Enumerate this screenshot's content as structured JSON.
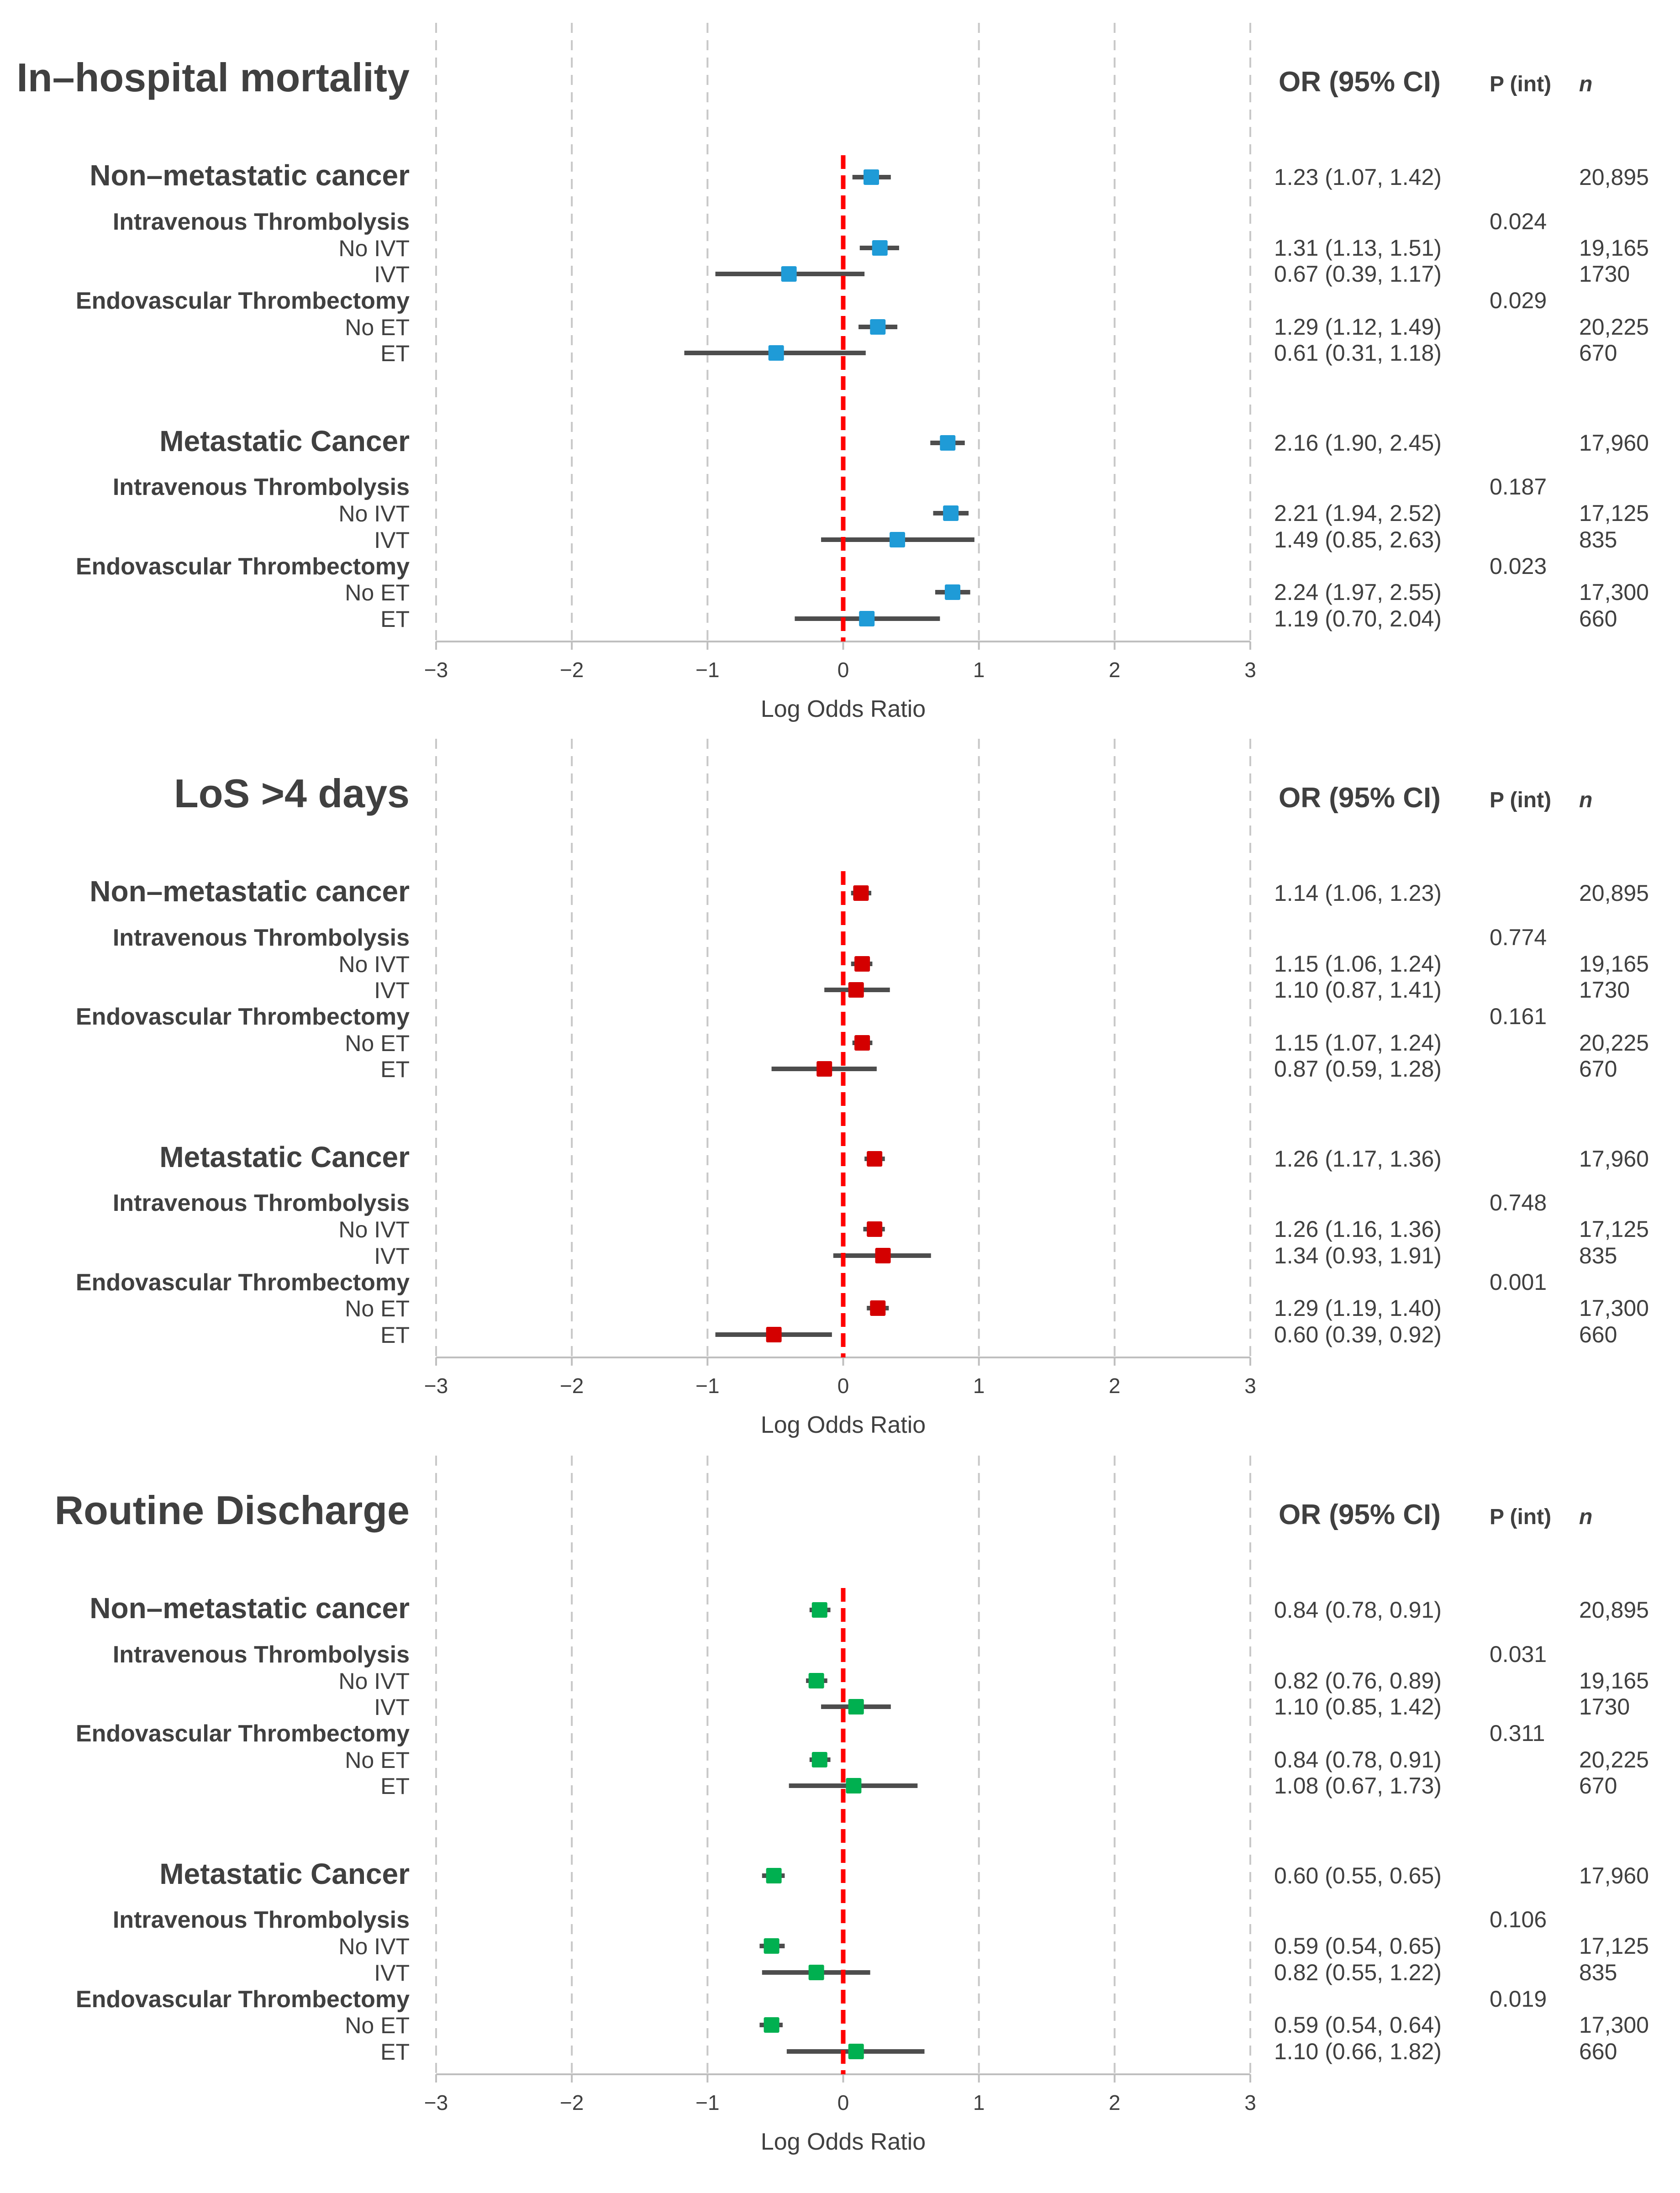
{
  "headers": {
    "or": "OR (95% CI)",
    "p": "P (int)",
    "n": "n"
  },
  "colors": {
    "mortality": "#1f9bd7",
    "los": "#d40000",
    "discharge": "#00b050",
    "reference_line": "#ff0000",
    "ci_line": "#4d4d4d"
  },
  "chart_data": [
    {
      "type": "forest",
      "title": "In–hospital mortality",
      "xlabel": "Log Odds Ratio",
      "xlim": [
        -3,
        3
      ],
      "xticks": [
        "−3",
        "−2",
        "−1",
        "0",
        "1",
        "2",
        "3"
      ],
      "reference_line": 0,
      "rows": [
        {
          "label": "Non–metastatic cancer",
          "kind": "group",
          "est": 0.207,
          "lo": 0.068,
          "hi": 0.351,
          "or": "1.23 (1.07, 1.42)",
          "p": "",
          "n": "20,895"
        },
        {
          "label": "Intravenous Thrombolysis",
          "kind": "subheader",
          "or": "",
          "p": "0.024",
          "n": ""
        },
        {
          "label": "No IVT",
          "kind": "row",
          "est": 0.27,
          "lo": 0.122,
          "hi": 0.412,
          "or": "1.31 (1.13, 1.51)",
          "p": "",
          "n": "19,165"
        },
        {
          "label": "IVT",
          "kind": "row",
          "est": -0.4,
          "lo": -0.942,
          "hi": 0.157,
          "or": "0.67 (0.39, 1.17)",
          "p": "",
          "n": "1730"
        },
        {
          "label": "Endovascular Thrombectomy",
          "kind": "subheader",
          "or": "",
          "p": "0.029",
          "n": ""
        },
        {
          "label": "No ET",
          "kind": "row",
          "est": 0.255,
          "lo": 0.113,
          "hi": 0.399,
          "or": "1.29 (1.12, 1.49)",
          "p": "",
          "n": "20,225"
        },
        {
          "label": "ET",
          "kind": "row",
          "est": -0.494,
          "lo": -1.171,
          "hi": 0.166,
          "or": "0.61 (0.31, 1.18)",
          "p": "",
          "n": "670"
        },
        {
          "kind": "spacer"
        },
        {
          "label": "Metastatic Cancer",
          "kind": "group",
          "est": 0.77,
          "lo": 0.642,
          "hi": 0.896,
          "or": "2.16 (1.90, 2.45)",
          "p": "",
          "n": "17,960"
        },
        {
          "label": "Intravenous Thrombolysis",
          "kind": "subheader",
          "or": "",
          "p": "0.187",
          "n": ""
        },
        {
          "label": "No IVT",
          "kind": "row",
          "est": 0.793,
          "lo": 0.663,
          "hi": 0.924,
          "or": "2.21 (1.94, 2.52)",
          "p": "",
          "n": "17,125"
        },
        {
          "label": "IVT",
          "kind": "row",
          "est": 0.399,
          "lo": -0.163,
          "hi": 0.967,
          "or": "1.49 (0.85, 2.63)",
          "p": "",
          "n": "835"
        },
        {
          "label": "Endovascular Thrombectomy",
          "kind": "subheader",
          "or": "",
          "p": "0.023",
          "n": ""
        },
        {
          "label": "No ET",
          "kind": "row",
          "est": 0.806,
          "lo": 0.678,
          "hi": 0.936,
          "or": "2.24 (1.97, 2.55)",
          "p": "",
          "n": "17,300"
        },
        {
          "label": "ET",
          "kind": "row",
          "est": 0.174,
          "lo": -0.357,
          "hi": 0.713,
          "or": "1.19 (0.70, 2.04)",
          "p": "",
          "n": "660"
        }
      ]
    },
    {
      "type": "forest",
      "title": "LoS >4 days",
      "xlabel": "Log Odds Ratio",
      "xlim": [
        -3,
        3
      ],
      "xticks": [
        "−3",
        "−2",
        "−1",
        "0",
        "1",
        "2",
        "3"
      ],
      "reference_line": 0,
      "rows": [
        {
          "label": "Non–metastatic cancer",
          "kind": "group",
          "est": 0.131,
          "lo": 0.058,
          "hi": 0.207,
          "or": "1.14 (1.06, 1.23)",
          "p": "",
          "n": "20,895"
        },
        {
          "label": "Intravenous Thrombolysis",
          "kind": "subheader",
          "or": "",
          "p": "0.774",
          "n": ""
        },
        {
          "label": "No IVT",
          "kind": "row",
          "est": 0.14,
          "lo": 0.058,
          "hi": 0.215,
          "or": "1.15 (1.06, 1.24)",
          "p": "",
          "n": "19,165"
        },
        {
          "label": "IVT",
          "kind": "row",
          "est": 0.095,
          "lo": -0.139,
          "hi": 0.344,
          "or": "1.10 (0.87, 1.41)",
          "p": "",
          "n": "1730"
        },
        {
          "label": "Endovascular Thrombectomy",
          "kind": "subheader",
          "or": "",
          "p": "0.161",
          "n": ""
        },
        {
          "label": "No ET",
          "kind": "row",
          "est": 0.14,
          "lo": 0.068,
          "hi": 0.215,
          "or": "1.15 (1.07, 1.24)",
          "p": "",
          "n": "20,225"
        },
        {
          "label": "ET",
          "kind": "row",
          "est": -0.139,
          "lo": -0.528,
          "hi": 0.247,
          "or": "0.87 (0.59, 1.28)",
          "p": "",
          "n": "670"
        },
        {
          "kind": "spacer"
        },
        {
          "label": "Metastatic Cancer",
          "kind": "group",
          "est": 0.231,
          "lo": 0.157,
          "hi": 0.307,
          "or": "1.26 (1.17, 1.36)",
          "p": "",
          "n": "17,960"
        },
        {
          "label": "Intravenous Thrombolysis",
          "kind": "subheader",
          "or": "",
          "p": "0.748",
          "n": ""
        },
        {
          "label": "No IVT",
          "kind": "row",
          "est": 0.231,
          "lo": 0.148,
          "hi": 0.307,
          "or": "1.26 (1.16, 1.36)",
          "p": "",
          "n": "17,125"
        },
        {
          "label": "IVT",
          "kind": "row",
          "est": 0.293,
          "lo": -0.073,
          "hi": 0.647,
          "or": "1.34 (0.93, 1.91)",
          "p": "",
          "n": "835"
        },
        {
          "label": "Endovascular Thrombectomy",
          "kind": "subheader",
          "or": "",
          "p": "0.001",
          "n": ""
        },
        {
          "label": "No ET",
          "kind": "row",
          "est": 0.255,
          "lo": 0.174,
          "hi": 0.336,
          "or": "1.29 (1.19, 1.40)",
          "p": "",
          "n": "17,300"
        },
        {
          "label": "ET",
          "kind": "row",
          "est": -0.511,
          "lo": -0.942,
          "hi": -0.083,
          "or": "0.60 (0.39, 0.92)",
          "p": "",
          "n": "660"
        }
      ]
    },
    {
      "type": "forest",
      "title": "Routine Discharge",
      "xlabel": "Log Odds Ratio",
      "xlim": [
        -3,
        3
      ],
      "xticks": [
        "−3",
        "−2",
        "−1",
        "0",
        "1",
        "2",
        "3"
      ],
      "reference_line": 0,
      "rows": [
        {
          "label": "Non–metastatic cancer",
          "kind": "group",
          "est": -0.174,
          "lo": -0.248,
          "hi": -0.094,
          "or": "0.84 (0.78, 0.91)",
          "p": "",
          "n": "20,895"
        },
        {
          "label": "Intravenous Thrombolysis",
          "kind": "subheader",
          "or": "",
          "p": "0.031",
          "n": ""
        },
        {
          "label": "No IVT",
          "kind": "row",
          "est": -0.198,
          "lo": -0.274,
          "hi": -0.117,
          "or": "0.82 (0.76, 0.89)",
          "p": "",
          "n": "19,165"
        },
        {
          "label": "IVT",
          "kind": "row",
          "est": 0.095,
          "lo": -0.163,
          "hi": 0.351,
          "or": "1.10 (0.85, 1.42)",
          "p": "",
          "n": "1730"
        },
        {
          "label": "Endovascular Thrombectomy",
          "kind": "subheader",
          "or": "",
          "p": "0.311",
          "n": ""
        },
        {
          "label": "No ET",
          "kind": "row",
          "est": -0.174,
          "lo": -0.248,
          "hi": -0.094,
          "or": "0.84 (0.78, 0.91)",
          "p": "",
          "n": "20,225"
        },
        {
          "label": "ET",
          "kind": "row",
          "est": 0.077,
          "lo": -0.4,
          "hi": 0.548,
          "or": "1.08 (0.67, 1.73)",
          "p": "",
          "n": "670"
        },
        {
          "kind": "spacer"
        },
        {
          "label": "Metastatic Cancer",
          "kind": "group",
          "est": -0.511,
          "lo": -0.598,
          "hi": -0.431,
          "or": "0.60 (0.55, 0.65)",
          "p": "",
          "n": "17,960"
        },
        {
          "label": "Intravenous Thrombolysis",
          "kind": "subheader",
          "or": "",
          "p": "0.106",
          "n": ""
        },
        {
          "label": "No IVT",
          "kind": "row",
          "est": -0.528,
          "lo": -0.616,
          "hi": -0.431,
          "or": "0.59 (0.54, 0.65)",
          "p": "",
          "n": "17,125"
        },
        {
          "label": "IVT",
          "kind": "row",
          "est": -0.198,
          "lo": -0.598,
          "hi": 0.199,
          "or": "0.82 (0.55, 1.22)",
          "p": "",
          "n": "835"
        },
        {
          "label": "Endovascular Thrombectomy",
          "kind": "subheader",
          "or": "",
          "p": "0.019",
          "n": ""
        },
        {
          "label": "No ET",
          "kind": "row",
          "est": -0.528,
          "lo": -0.616,
          "hi": -0.446,
          "or": "0.59 (0.54, 0.64)",
          "p": "",
          "n": "17,300"
        },
        {
          "label": "ET",
          "kind": "row",
          "est": 0.095,
          "lo": -0.416,
          "hi": 0.599,
          "or": "1.10 (0.66, 1.82)",
          "p": "",
          "n": "660"
        }
      ]
    }
  ]
}
